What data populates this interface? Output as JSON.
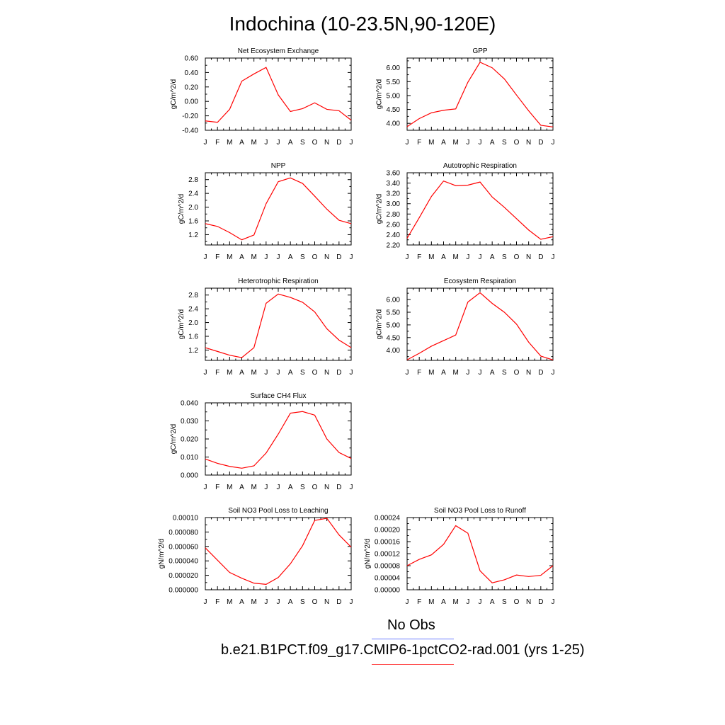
{
  "title": "Indochina (10-23.5N,90-120E)",
  "months": [
    "J",
    "F",
    "M",
    "A",
    "M",
    "J",
    "J",
    "A",
    "S",
    "O",
    "N",
    "D",
    "J"
  ],
  "legend": {
    "obs_label": "No Obs",
    "obs_color": "#6b7cff",
    "model_label": "b.e21.B1PCT.f09_g17.CMIP6-1pctCO2-rad.001 (yrs 1-25)",
    "model_color": "#ff4d4d"
  },
  "chart_data": [
    {
      "type": "line",
      "title": "Net Ecosystem Exchange",
      "ylabel": "gC/m^2/d",
      "ylim": [
        -0.4,
        0.6
      ],
      "yticks": [
        "0.60",
        "0.40",
        "0.20",
        "0.00",
        "-0.20",
        "-0.40"
      ],
      "ytick_values": [
        0.6,
        0.4,
        0.2,
        0.0,
        -0.2,
        -0.4
      ],
      "series": [
        {
          "color": "#ff0000",
          "values": [
            -0.27,
            -0.29,
            -0.11,
            0.28,
            0.38,
            0.47,
            0.09,
            -0.14,
            -0.1,
            -0.02,
            -0.11,
            -0.13,
            -0.26
          ]
        }
      ]
    },
    {
      "type": "line",
      "title": "GPP",
      "ylabel": "gC/m^2/d",
      "ylim": [
        3.75,
        6.35
      ],
      "yticks": [
        "6.00",
        "5.50",
        "5.00",
        "4.50",
        "4.00"
      ],
      "ytick_values": [
        6.0,
        5.5,
        5.0,
        4.5,
        4.0
      ],
      "series": [
        {
          "color": "#ff0000",
          "values": [
            3.88,
            4.17,
            4.38,
            4.47,
            4.52,
            5.48,
            6.2,
            6.0,
            5.6,
            5.02,
            4.45,
            3.93,
            3.87
          ]
        }
      ]
    },
    {
      "type": "line",
      "title": "NPP",
      "ylabel": "gC/m^2/d",
      "ylim": [
        0.9,
        3.0
      ],
      "yticks": [
        "2.8",
        "2.4",
        "2.0",
        "1.6",
        "1.2"
      ],
      "ytick_values": [
        2.8,
        2.4,
        2.0,
        1.6,
        1.2
      ],
      "series": [
        {
          "color": "#ff0000",
          "values": [
            1.52,
            1.44,
            1.26,
            1.05,
            1.19,
            2.1,
            2.74,
            2.85,
            2.69,
            2.32,
            1.94,
            1.62,
            1.52
          ]
        }
      ]
    },
    {
      "type": "line",
      "title": "Autotrophic Respiration",
      "ylabel": "gC/m^2/d",
      "ylim": [
        2.2,
        3.6
      ],
      "yticks": [
        "3.60",
        "3.40",
        "3.20",
        "3.00",
        "2.80",
        "2.60",
        "2.40",
        "2.20"
      ],
      "ytick_values": [
        3.6,
        3.4,
        3.2,
        3.0,
        2.8,
        2.6,
        2.4,
        2.2
      ],
      "series": [
        {
          "color": "#ff0000",
          "values": [
            2.33,
            2.73,
            3.14,
            3.44,
            3.35,
            3.36,
            3.42,
            3.13,
            2.93,
            2.71,
            2.49,
            2.31,
            2.36
          ]
        }
      ]
    },
    {
      "type": "line",
      "title": "Heterotrophic Respiration",
      "ylabel": "gC/m^2/d",
      "ylim": [
        0.9,
        3.0
      ],
      "yticks": [
        "2.8",
        "2.4",
        "2.0",
        "1.6",
        "1.2"
      ],
      "ytick_values": [
        2.8,
        2.4,
        2.0,
        1.6,
        1.2
      ],
      "series": [
        {
          "color": "#ff0000",
          "values": [
            1.27,
            1.16,
            1.05,
            0.98,
            1.27,
            2.56,
            2.83,
            2.73,
            2.59,
            2.31,
            1.82,
            1.49,
            1.27
          ]
        }
      ]
    },
    {
      "type": "line",
      "title": "Ecosystem Respiration",
      "ylabel": "gC/m^2/d",
      "ylim": [
        3.6,
        6.45
      ],
      "yticks": [
        "6.00",
        "5.50",
        "5.00",
        "4.50",
        "4.00"
      ],
      "ytick_values": [
        6.0,
        5.5,
        5.0,
        4.5,
        4.0
      ],
      "series": [
        {
          "color": "#ff0000",
          "values": [
            3.62,
            3.88,
            4.16,
            4.38,
            4.6,
            5.9,
            6.27,
            5.85,
            5.5,
            5.03,
            4.32,
            3.77,
            3.62
          ]
        }
      ]
    },
    {
      "type": "line",
      "title": "Surface CH4 Flux",
      "ylabel": "gC/m^2/d",
      "ylim": [
        0.0,
        0.04
      ],
      "yticks": [
        "0.040",
        "0.030",
        "0.020",
        "0.010",
        "0.000"
      ],
      "ytick_values": [
        0.04,
        0.03,
        0.02,
        0.01,
        0.0
      ],
      "series": [
        {
          "color": "#ff0000",
          "values": [
            0.0089,
            0.0065,
            0.0048,
            0.0038,
            0.0051,
            0.0122,
            0.0227,
            0.0343,
            0.0352,
            0.0332,
            0.02,
            0.0125,
            0.0092
          ]
        }
      ]
    },
    null,
    {
      "type": "line",
      "title": "Soil NO3 Pool Loss to Leaching",
      "ylabel": "gN/m^2/d",
      "ylim": [
        0.0,
        0.0001
      ],
      "yticks": [
        "0.00010",
        "0.000080",
        "0.000060",
        "0.000040",
        "0.000020",
        "0.000000"
      ],
      "ytick_values": [
        0.0001,
        8e-05,
        6e-05,
        4e-05,
        2e-05,
        0.0
      ],
      "series": [
        {
          "color": "#ff0000",
          "values": [
            5.8e-05,
            4.1e-05,
            2.4e-05,
            1.6e-05,
            9.2e-06,
            7.5e-06,
            1.7e-05,
            3.6e-05,
            6.1e-05,
            9.6e-05,
            9.9e-05,
            7.6e-05,
            5.9e-05
          ]
        }
      ]
    },
    {
      "type": "line",
      "title": "Soil NO3 Pool Loss to Runoff",
      "ylabel": "gN/m^2/d",
      "ylim": [
        0.0,
        0.00024
      ],
      "yticks": [
        "0.00024",
        "0.00020",
        "0.00016",
        "0.00012",
        "0.00008",
        "0.00004",
        "0.00000"
      ],
      "ytick_values": [
        0.00024,
        0.0002,
        0.00016,
        0.00012,
        8e-05,
        4e-05,
        0.0
      ],
      "series": [
        {
          "color": "#ff0000",
          "values": [
            8e-05,
            0.000101,
            0.000116,
            0.000151,
            0.000213,
            0.000188,
            6.3e-05,
            2.3e-05,
            3.3e-05,
            4.9e-05,
            4.4e-05,
            4.8e-05,
            8e-05
          ]
        }
      ]
    }
  ]
}
